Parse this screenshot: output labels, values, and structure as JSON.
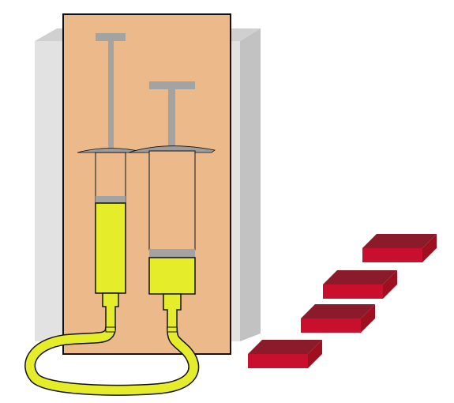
{
  "colors": {
    "background": "#ffffff",
    "wall_front": "#e2e2e2",
    "wall_side": "#c2c2c2",
    "wall_top": "#d0d0d0",
    "board": "#ecb98b",
    "outline": "#111111",
    "plunger": "#a3a3a3",
    "plunger_flange": "#9c9c9c",
    "fluid": "#e5ec2a",
    "barrel_empty": "#ecb98b",
    "tube": "#e5ec2a",
    "weight_top": "#8b1a2b",
    "weight_front": "#c8102e",
    "weight_side": "#9e1020"
  },
  "icons": {
    "left_syringe": "syringe-small-icon",
    "right_syringe": "syringe-large-icon",
    "tube": "connecting-tube-icon",
    "weights": "weight-block-icon"
  },
  "weights": {
    "count": 4
  }
}
